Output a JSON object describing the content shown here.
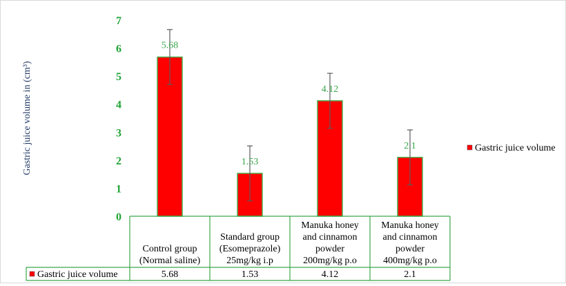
{
  "chart_data": {
    "type": "bar",
    "categories": [
      [
        "Control group",
        "(Normal saline)"
      ],
      [
        "Standard group",
        "(Esomeprazole)",
        "25mg/kg i.p"
      ],
      [
        "Manuka honey",
        "and cinnamon",
        "powder",
        "200mg/kg p.o"
      ],
      [
        "Manuka honey",
        "and cinnamon",
        "powder",
        "400mg/kg p.o"
      ]
    ],
    "series": [
      {
        "name": "Gastric juice volume",
        "values": [
          5.68,
          1.53,
          4.12,
          2.1
        ],
        "data_labels": [
          "5.68",
          "1.53",
          "4.12",
          "2.1"
        ],
        "error": [
          0.98,
          0.98,
          0.98,
          0.98
        ],
        "color": "#ff0000",
        "border_color": "#4caf50"
      }
    ],
    "ylabel": "Gastric juice volume in (cm³)",
    "ylim": [
      0,
      7
    ],
    "yticks": [
      "0",
      "1",
      "2",
      "3",
      "4",
      "5",
      "6",
      "7"
    ],
    "legend": {
      "position": "right",
      "label": "Gastric juice volume"
    },
    "data_table": {
      "row_label": "Gastric juice volume",
      "values": [
        "5.68",
        "1.53",
        "4.12",
        "2.1"
      ]
    },
    "colors": {
      "tick_label": "#21a336",
      "data_label": "#3aa64a",
      "axis_title": "#1f3864",
      "table_border": "#3aa64a",
      "error_bar": "#595959",
      "text": "#000000"
    }
  }
}
